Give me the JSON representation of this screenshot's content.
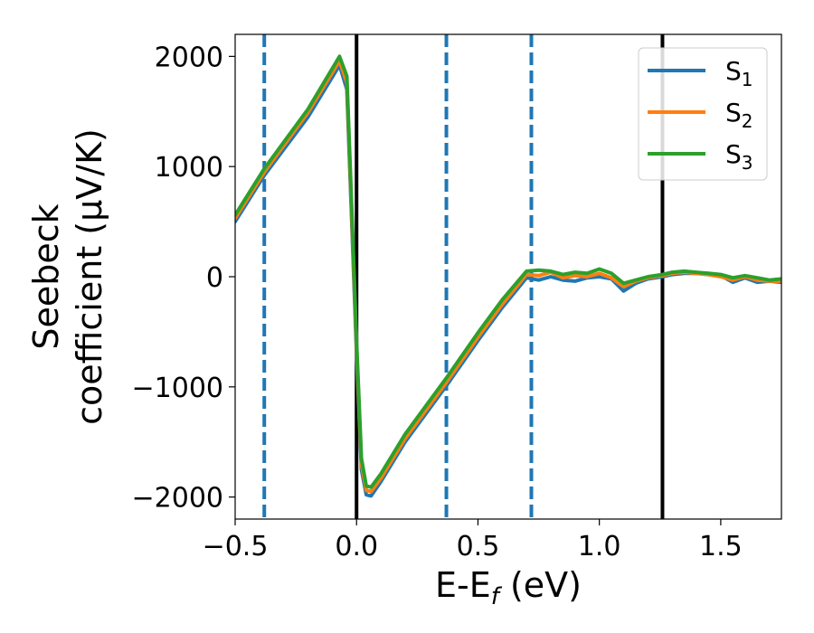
{
  "chart_data": {
    "type": "line",
    "xlabel": "E-E",
    "xlabel_sub": "f",
    "xlabel_unit": " (eV)",
    "ylabel_line1": "Seebeck",
    "ylabel_line2": "coefficient  (μV/K)",
    "xlim": [
      -0.5,
      1.75
    ],
    "ylim": [
      -2200,
      2200
    ],
    "xticks": [
      -0.5,
      0.0,
      0.5,
      1.0,
      1.5
    ],
    "xtick_labels": [
      "−0.5",
      "0.0",
      "0.5",
      "1.0",
      "1.5"
    ],
    "yticks": [
      -2000,
      -1000,
      0,
      1000,
      2000
    ],
    "ytick_labels": [
      "−2000",
      "−1000",
      "0",
      "1000",
      "2000"
    ],
    "legend_position": "top-right",
    "grid": false,
    "vertical_lines": [
      {
        "x": -0.38,
        "style": "dashed",
        "color": "#1f77b4"
      },
      {
        "x": 0.0,
        "style": "solid",
        "color": "#000000"
      },
      {
        "x": 0.37,
        "style": "dashed",
        "color": "#1f77b4"
      },
      {
        "x": 0.72,
        "style": "dashed",
        "color": "#1f77b4"
      },
      {
        "x": 1.26,
        "style": "solid",
        "color": "#000000"
      }
    ],
    "series": [
      {
        "name": "S",
        "sub": "1",
        "color": "#1f77b4",
        "x": [
          -0.5,
          -0.38,
          -0.2,
          -0.07,
          -0.04,
          -0.02,
          0.0,
          0.02,
          0.04,
          0.06,
          0.1,
          0.2,
          0.37,
          0.5,
          0.6,
          0.7,
          0.75,
          0.8,
          0.85,
          0.9,
          0.95,
          1.0,
          1.05,
          1.1,
          1.15,
          1.2,
          1.26,
          1.3,
          1.35,
          1.4,
          1.45,
          1.5,
          1.55,
          1.6,
          1.65,
          1.7,
          1.75
        ],
        "y": [
          500,
          920,
          1450,
          1920,
          1700,
          500,
          -700,
          -1750,
          -1980,
          -1990,
          -1860,
          -1500,
          -990,
          -580,
          -280,
          -10,
          -30,
          0,
          -30,
          -40,
          -10,
          0,
          -20,
          -130,
          -60,
          -20,
          0,
          20,
          30,
          30,
          20,
          10,
          -50,
          -10,
          -50,
          -40,
          -50
        ]
      },
      {
        "name": "S",
        "sub": "2",
        "color": "#ff7f0e",
        "x": [
          -0.5,
          -0.38,
          -0.2,
          -0.07,
          -0.04,
          -0.02,
          0.0,
          0.02,
          0.04,
          0.06,
          0.1,
          0.2,
          0.37,
          0.5,
          0.6,
          0.7,
          0.75,
          0.8,
          0.85,
          0.9,
          0.95,
          1.0,
          1.05,
          1.1,
          1.15,
          1.2,
          1.26,
          1.3,
          1.35,
          1.4,
          1.45,
          1.5,
          1.55,
          1.6,
          1.65,
          1.7,
          1.75
        ],
        "y": [
          530,
          950,
          1490,
          1960,
          1760,
          560,
          -640,
          -1700,
          -1940,
          -1950,
          -1830,
          -1470,
          -960,
          -550,
          -250,
          20,
          10,
          40,
          -10,
          10,
          0,
          30,
          -10,
          -90,
          -40,
          -10,
          10,
          30,
          40,
          30,
          20,
          0,
          -30,
          0,
          -30,
          -40,
          -40
        ]
      },
      {
        "name": "S",
        "sub": "3",
        "color": "#2ca02c",
        "x": [
          -0.5,
          -0.38,
          -0.2,
          -0.07,
          -0.04,
          -0.02,
          0.0,
          0.02,
          0.04,
          0.06,
          0.1,
          0.2,
          0.37,
          0.5,
          0.6,
          0.7,
          0.75,
          0.8,
          0.85,
          0.9,
          0.95,
          1.0,
          1.05,
          1.1,
          1.15,
          1.2,
          1.26,
          1.3,
          1.35,
          1.4,
          1.45,
          1.5,
          1.55,
          1.6,
          1.65,
          1.7,
          1.75
        ],
        "y": [
          560,
          980,
          1520,
          2000,
          1820,
          620,
          -580,
          -1650,
          -1900,
          -1910,
          -1790,
          -1430,
          -920,
          -510,
          -210,
          50,
          60,
          50,
          20,
          40,
          30,
          70,
          30,
          -60,
          -30,
          0,
          20,
          40,
          50,
          40,
          30,
          20,
          -10,
          10,
          -10,
          -30,
          -20
        ]
      }
    ]
  }
}
